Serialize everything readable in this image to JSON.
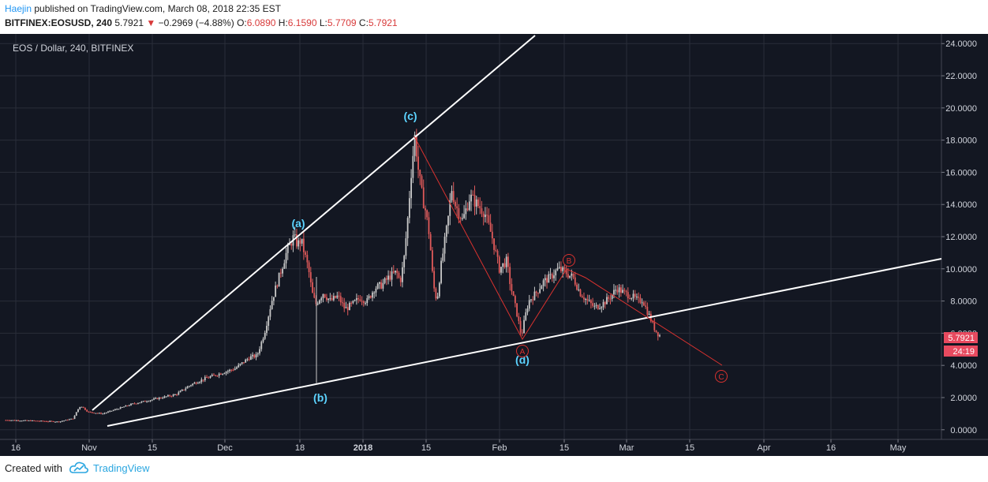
{
  "header": {
    "author": "Haejin",
    "published_text": " published on TradingView.com, March 08, 2018 22:35 EST",
    "symbol": "BITFINEX:EOSUSD, 240",
    "last": "5.7921",
    "arrow": "▼",
    "change": "−0.2969 (−4.88%)",
    "o_label": "O:",
    "o_value": "6.0890",
    "h_label": "H:",
    "h_value": "6.1590",
    "l_label": "L:",
    "l_value": "5.7709",
    "c_label": "C:",
    "c_value": "5.7921"
  },
  "chart_data": {
    "type": "candlestick",
    "title": "EOS / Dollar, 240, BITFINEX",
    "x_ticks": [
      "16",
      "Nov",
      "15",
      "Dec",
      "18",
      "2018",
      "15",
      "Feb",
      "15",
      "Mar",
      "15",
      "Apr",
      "16",
      "May"
    ],
    "y_ticks": [
      "0.0000",
      "2.0000",
      "4.0000",
      "6.0000",
      "8.0000",
      "10.0000",
      "12.0000",
      "14.0000",
      "16.0000",
      "18.0000",
      "20.0000",
      "22.0000",
      "24.0000"
    ],
    "ylim": [
      -0.6,
      24.6
    ],
    "grid": true,
    "last_price_label": "5.7921",
    "countdown_label": "24:19",
    "price_path": [
      [
        0.01,
        0.6
      ],
      [
        0.05,
        0.55
      ],
      [
        0.08,
        0.5
      ],
      [
        0.1,
        0.7
      ],
      [
        0.105,
        1.2
      ],
      [
        0.11,
        1.5
      ],
      [
        0.12,
        1.1
      ],
      [
        0.14,
        1.0
      ],
      [
        0.16,
        1.3
      ],
      [
        0.18,
        1.6
      ],
      [
        0.2,
        1.8
      ],
      [
        0.22,
        2.0
      ],
      [
        0.24,
        2.2
      ],
      [
        0.26,
        2.8
      ],
      [
        0.28,
        3.2
      ],
      [
        0.3,
        3.5
      ],
      [
        0.32,
        3.8
      ],
      [
        0.34,
        4.5
      ],
      [
        0.35,
        4.6
      ],
      [
        0.36,
        6.0
      ],
      [
        0.37,
        8.0
      ],
      [
        0.38,
        9.5
      ],
      [
        0.39,
        11.0
      ],
      [
        0.4,
        12.0
      ],
      [
        0.405,
        11.5
      ],
      [
        0.41,
        11.8
      ],
      [
        0.42,
        10.0
      ],
      [
        0.425,
        8.5
      ],
      [
        0.43,
        7.8
      ],
      [
        0.44,
        8.5
      ],
      [
        0.45,
        8.0
      ],
      [
        0.46,
        8.3
      ],
      [
        0.47,
        7.5
      ],
      [
        0.48,
        7.8
      ],
      [
        0.49,
        8.2
      ],
      [
        0.5,
        8.0
      ],
      [
        0.51,
        8.8
      ],
      [
        0.52,
        9.0
      ],
      [
        0.53,
        9.5
      ],
      [
        0.54,
        9.8
      ],
      [
        0.545,
        9.2
      ],
      [
        0.55,
        10.5
      ],
      [
        0.555,
        13.0
      ],
      [
        0.56,
        16.0
      ],
      [
        0.565,
        18.3
      ],
      [
        0.57,
        16.0
      ],
      [
        0.575,
        14.5
      ],
      [
        0.58,
        13.5
      ],
      [
        0.585,
        12.0
      ],
      [
        0.59,
        9.0
      ],
      [
        0.595,
        8.0
      ],
      [
        0.6,
        10.0
      ],
      [
        0.61,
        13.0
      ],
      [
        0.615,
        15.0
      ],
      [
        0.62,
        14.0
      ],
      [
        0.63,
        13.0
      ],
      [
        0.64,
        14.5
      ],
      [
        0.65,
        14.0
      ],
      [
        0.66,
        13.5
      ],
      [
        0.67,
        12.0
      ],
      [
        0.675,
        11.0
      ],
      [
        0.68,
        10.0
      ],
      [
        0.69,
        10.5
      ],
      [
        0.695,
        9.0
      ],
      [
        0.7,
        8.0
      ],
      [
        0.705,
        7.0
      ],
      [
        0.71,
        5.8
      ],
      [
        0.715,
        7.0
      ],
      [
        0.72,
        8.0
      ],
      [
        0.73,
        8.5
      ],
      [
        0.74,
        9.2
      ],
      [
        0.75,
        9.5
      ],
      [
        0.76,
        10.0
      ],
      [
        0.77,
        9.8
      ],
      [
        0.775,
        9.6
      ],
      [
        0.78,
        9.5
      ],
      [
        0.79,
        8.5
      ],
      [
        0.8,
        8.0
      ],
      [
        0.81,
        7.6
      ],
      [
        0.82,
        7.8
      ],
      [
        0.83,
        8.2
      ],
      [
        0.84,
        8.8
      ],
      [
        0.85,
        8.5
      ],
      [
        0.86,
        8.3
      ],
      [
        0.87,
        8.0
      ],
      [
        0.875,
        8.1
      ],
      [
        0.88,
        7.5
      ],
      [
        0.885,
        7.0
      ],
      [
        0.89,
        6.4
      ],
      [
        0.895,
        6.0
      ],
      [
        0.9,
        5.79
      ]
    ],
    "annotations": {
      "wave_a": "(a)",
      "wave_b": "(b)",
      "wave_c": "(c)",
      "wave_d": "(d)",
      "circle_A": "A",
      "circle_B": "B",
      "circle_C": "C"
    },
    "colors": {
      "background": "#131722",
      "grid": "#2a2e39",
      "up": "#c8c8c8",
      "down": "#e05a5a",
      "trendline": "#ffffff",
      "wave_line": "#d9322f",
      "wave_label": "#5cd3ff",
      "price_badge": "#e84a5f"
    }
  },
  "footer": {
    "created_with": "Created with",
    "brand": "TradingView",
    "logo_icon": "tradingview-cloud-icon"
  }
}
